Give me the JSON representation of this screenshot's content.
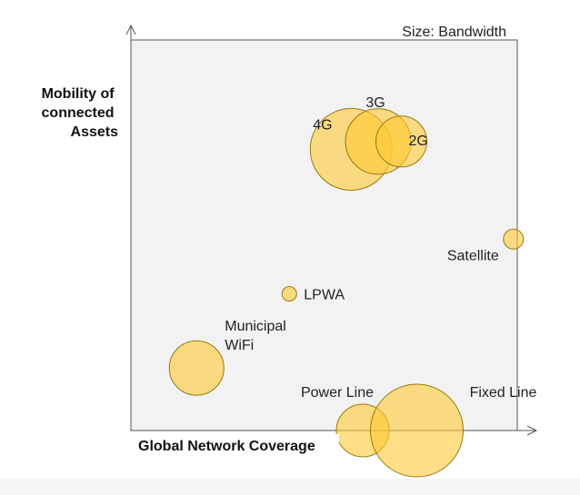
{
  "chart_data": {
    "type": "bubble",
    "title": "",
    "size_legend": "Size: Bandwidth",
    "xlabel": "Global Network Coverage",
    "ylabel_lines": [
      "Mobility of",
      "connected",
      "Assets"
    ],
    "grid": false,
    "ticks": false,
    "colors": {
      "bubble_fill": "#FFC933",
      "bubble_stroke": "#9A7A10",
      "plot_bg": "#F2F2F2",
      "axis": "#555555"
    },
    "points": [
      {
        "label": "4G",
        "x": 0.57,
        "y": 0.72,
        "size": 45
      },
      {
        "label": "3G",
        "x": 0.64,
        "y": 0.74,
        "size": 36
      },
      {
        "label": "2G",
        "x": 0.7,
        "y": 0.74,
        "size": 28
      },
      {
        "label": "Satellite",
        "x": 0.99,
        "y": 0.49,
        "size": 11
      },
      {
        "label": "LPWA",
        "x": 0.41,
        "y": 0.35,
        "size": 8
      },
      {
        "label": "Municipal WiFi",
        "x": 0.17,
        "y": 0.16,
        "size": 30
      },
      {
        "label": "Power Line",
        "x": 0.6,
        "y": 0.0,
        "size": 29
      },
      {
        "label": "Fixed Line",
        "x": 0.74,
        "y": 0.0,
        "size": 51
      }
    ]
  }
}
